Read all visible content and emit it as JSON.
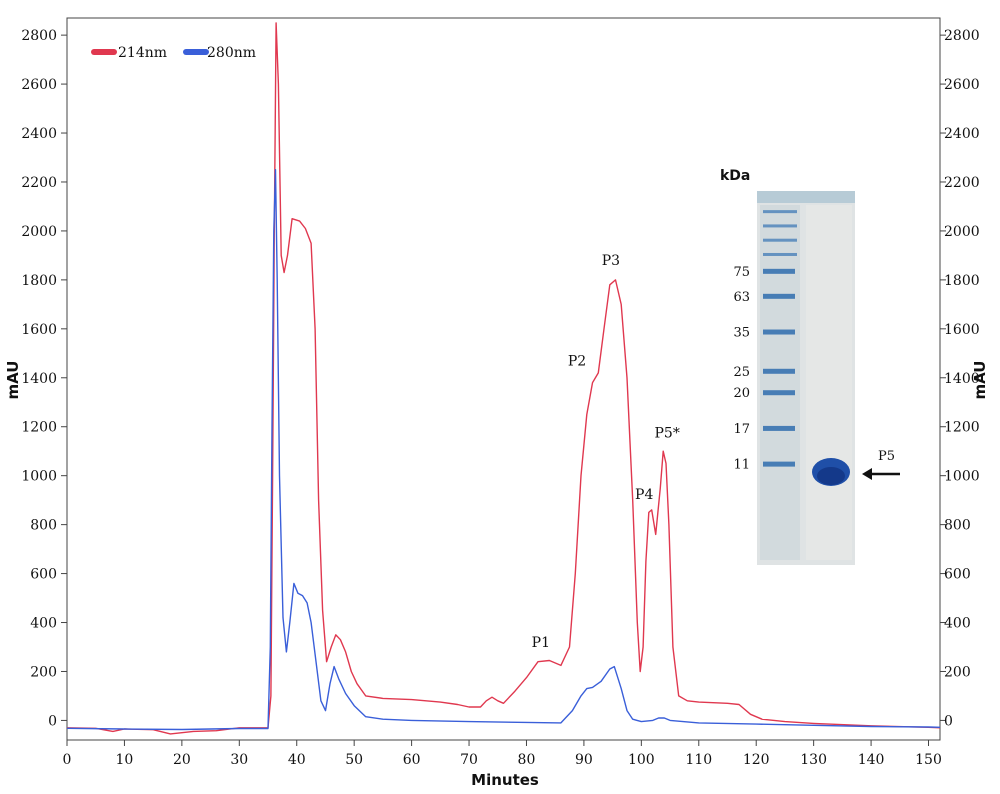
{
  "chart_data": {
    "type": "line",
    "xlabel": "Minutes",
    "ylabel": "mAU",
    "ylabel_right": "mAU",
    "xlim": [
      0,
      152
    ],
    "ylim": [
      -80,
      2870
    ],
    "x_ticks": [
      0,
      10,
      20,
      30,
      40,
      50,
      60,
      70,
      80,
      90,
      100,
      110,
      120,
      130,
      140,
      150
    ],
    "y_ticks": [
      0,
      200,
      400,
      600,
      800,
      1000,
      1200,
      1400,
      1600,
      1800,
      2000,
      2200,
      2400,
      2600,
      2800
    ],
    "legend_position": "top-left",
    "series": [
      {
        "name": "214nm",
        "color": "#e0384f",
        "points": [
          [
            0,
            -30
          ],
          [
            5,
            -32
          ],
          [
            8,
            -45
          ],
          [
            10,
            -35
          ],
          [
            15,
            -38
          ],
          [
            18,
            -55
          ],
          [
            22,
            -45
          ],
          [
            26,
            -42
          ],
          [
            30,
            -30
          ],
          [
            35,
            -30
          ],
          [
            35.5,
            100
          ],
          [
            35.8,
            1000
          ],
          [
            36.1,
            2000
          ],
          [
            36.4,
            2850
          ],
          [
            36.8,
            2600
          ],
          [
            37.3,
            1900
          ],
          [
            37.8,
            1830
          ],
          [
            38.4,
            1900
          ],
          [
            39.2,
            2050
          ],
          [
            40.5,
            2040
          ],
          [
            41.5,
            2010
          ],
          [
            42.5,
            1950
          ],
          [
            43.2,
            1600
          ],
          [
            43.8,
            900
          ],
          [
            44.5,
            450
          ],
          [
            45.2,
            240
          ],
          [
            46,
            300
          ],
          [
            46.8,
            350
          ],
          [
            47.6,
            330
          ],
          [
            48.5,
            280
          ],
          [
            49.5,
            200
          ],
          [
            50.5,
            150
          ],
          [
            52,
            100
          ],
          [
            55,
            90
          ],
          [
            60,
            85
          ],
          [
            65,
            75
          ],
          [
            68,
            65
          ],
          [
            70,
            55
          ],
          [
            72,
            55
          ],
          [
            73,
            80
          ],
          [
            74,
            95
          ],
          [
            75,
            80
          ],
          [
            76,
            70
          ],
          [
            78,
            120
          ],
          [
            80,
            175
          ],
          [
            82,
            240
          ],
          [
            84,
            245
          ],
          [
            86,
            225
          ],
          [
            87.5,
            300
          ],
          [
            88.5,
            600
          ],
          [
            89.5,
            1000
          ],
          [
            90.5,
            1250
          ],
          [
            91.5,
            1380
          ],
          [
            92.5,
            1420
          ],
          [
            93.5,
            1600
          ],
          [
            94.5,
            1780
          ],
          [
            95.5,
            1800
          ],
          [
            96.5,
            1700
          ],
          [
            97.5,
            1400
          ],
          [
            98.5,
            900
          ],
          [
            99.3,
            400
          ],
          [
            99.8,
            200
          ],
          [
            100.3,
            300
          ],
          [
            100.8,
            650
          ],
          [
            101.3,
            850
          ],
          [
            101.8,
            860
          ],
          [
            102.5,
            760
          ],
          [
            103.3,
            950
          ],
          [
            103.8,
            1100
          ],
          [
            104.3,
            1050
          ],
          [
            104.8,
            800
          ],
          [
            105.5,
            300
          ],
          [
            106.5,
            100
          ],
          [
            108,
            80
          ],
          [
            110,
            75
          ],
          [
            115,
            70
          ],
          [
            117,
            65
          ],
          [
            119,
            25
          ],
          [
            121,
            5
          ],
          [
            125,
            -5
          ],
          [
            130,
            -12
          ],
          [
            140,
            -22
          ],
          [
            150,
            -28
          ],
          [
            152,
            -30
          ]
        ]
      },
      {
        "name": "280nm",
        "color": "#3a5fd9",
        "points": [
          [
            0,
            -32
          ],
          [
            10,
            -35
          ],
          [
            20,
            -37
          ],
          [
            30,
            -33
          ],
          [
            35,
            -33
          ],
          [
            35.4,
            300
          ],
          [
            35.7,
            1200
          ],
          [
            36,
            2000
          ],
          [
            36.3,
            2250
          ],
          [
            36.6,
            1800
          ],
          [
            37,
            1000
          ],
          [
            37.6,
            420
          ],
          [
            38.2,
            280
          ],
          [
            38.8,
            400
          ],
          [
            39.5,
            560
          ],
          [
            40.2,
            520
          ],
          [
            41,
            510
          ],
          [
            41.8,
            480
          ],
          [
            42.5,
            400
          ],
          [
            43.3,
            250
          ],
          [
            44.2,
            80
          ],
          [
            45,
            40
          ],
          [
            45.8,
            150
          ],
          [
            46.5,
            220
          ],
          [
            47.3,
            170
          ],
          [
            48.5,
            110
          ],
          [
            50,
            60
          ],
          [
            52,
            15
          ],
          [
            55,
            5
          ],
          [
            60,
            0
          ],
          [
            70,
            -5
          ],
          [
            80,
            -8
          ],
          [
            86,
            -10
          ],
          [
            88,
            40
          ],
          [
            89.5,
            100
          ],
          [
            90.5,
            130
          ],
          [
            91.5,
            135
          ],
          [
            93,
            160
          ],
          [
            94.5,
            210
          ],
          [
            95.3,
            220
          ],
          [
            96.5,
            130
          ],
          [
            97.5,
            40
          ],
          [
            98.5,
            5
          ],
          [
            100,
            -5
          ],
          [
            102,
            0
          ],
          [
            103,
            10
          ],
          [
            104,
            10
          ],
          [
            105,
            0
          ],
          [
            110,
            -10
          ],
          [
            120,
            -15
          ],
          [
            130,
            -20
          ],
          [
            140,
            -25
          ],
          [
            150,
            -27
          ],
          [
            152,
            -28
          ]
        ]
      }
    ],
    "annotations": [
      {
        "text": "P1",
        "x": 82.5,
        "y": 300
      },
      {
        "text": "P2",
        "x": 88.8,
        "y": 1450
      },
      {
        "text": "P3",
        "x": 94.7,
        "y": 1860
      },
      {
        "text": "P4",
        "x": 100.5,
        "y": 905
      },
      {
        "text": "P5*",
        "x": 104.5,
        "y": 1155
      }
    ],
    "inset_gel": {
      "title": "kDa",
      "ladder_labels": [
        "75",
        "63",
        "35",
        "25",
        "20",
        "17",
        "11"
      ],
      "ladder_fractions": [
        0.19,
        0.26,
        0.36,
        0.47,
        0.53,
        0.63,
        0.73
      ],
      "band_label": "P5",
      "band_fraction": 0.73
    }
  }
}
